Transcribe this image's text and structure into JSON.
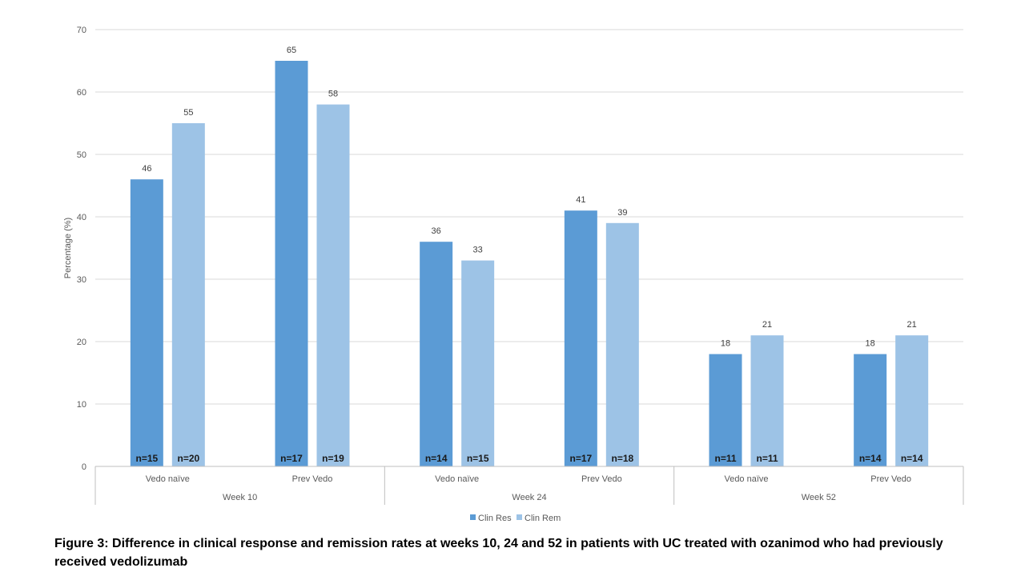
{
  "caption": "Figure 3: Difference in clinical response and remission rates at weeks 10, 24 and 52 in patients with UC treated with ozanimod who had previously received vedolizumab",
  "colors": {
    "clin_res": "#5b9bd5",
    "clin_rem": "#9dc3e6",
    "grid": "#d9d9d9",
    "axis": "#bfbfbf"
  },
  "chart_data": {
    "type": "bar",
    "ylabel": "Percentage (%)",
    "ylim": [
      0,
      70
    ],
    "yticks": [
      0,
      10,
      20,
      30,
      40,
      50,
      60,
      70
    ],
    "grid": true,
    "legend": "bottom",
    "categories": [
      "Vedo naïve",
      "Prev Vedo",
      "Vedo naïve",
      "Prev Vedo",
      "Vedo naïve",
      "Prev Vedo"
    ],
    "groups": [
      {
        "label": "Week 10",
        "categories": [
          0,
          1
        ]
      },
      {
        "label": "Week 24",
        "categories": [
          2,
          3
        ]
      },
      {
        "label": "Week 52",
        "categories": [
          4,
          5
        ]
      }
    ],
    "series": [
      {
        "name": "Clin Res",
        "values": [
          46,
          65,
          36,
          41,
          18,
          18
        ],
        "n": [
          "n=15",
          "n=17",
          "n=14",
          "n=17",
          "n=11",
          "n=14"
        ]
      },
      {
        "name": "Clin Rem",
        "values": [
          55,
          58,
          33,
          39,
          21,
          21
        ],
        "n": [
          "n=20",
          "n=19",
          "n=15",
          "n=18",
          "n=11",
          "n=14"
        ]
      }
    ]
  }
}
